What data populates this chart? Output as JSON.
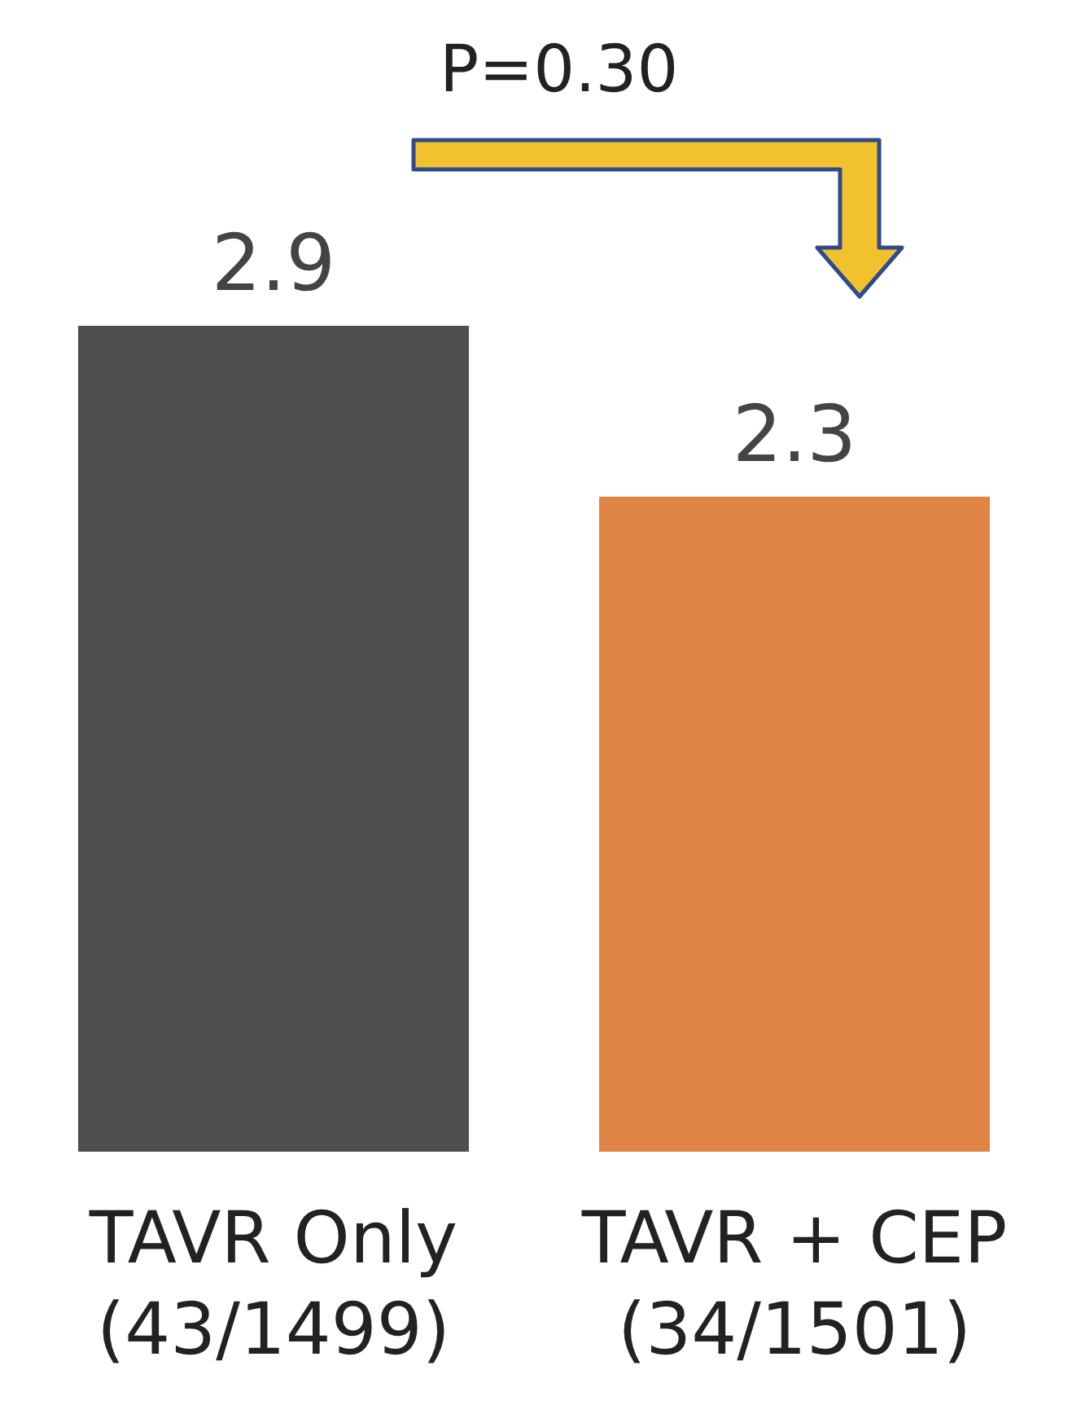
{
  "chart_data": {
    "type": "bar",
    "categories": [
      "TAVR Only\n(43/1499)",
      "TAVR + CEP\n(34/1501)"
    ],
    "values": [
      2.9,
      2.3
    ],
    "colors": [
      "#4f4f4f",
      "#e08445"
    ],
    "data_labels": true,
    "annotations": [
      "P=0.30"
    ]
  }
}
